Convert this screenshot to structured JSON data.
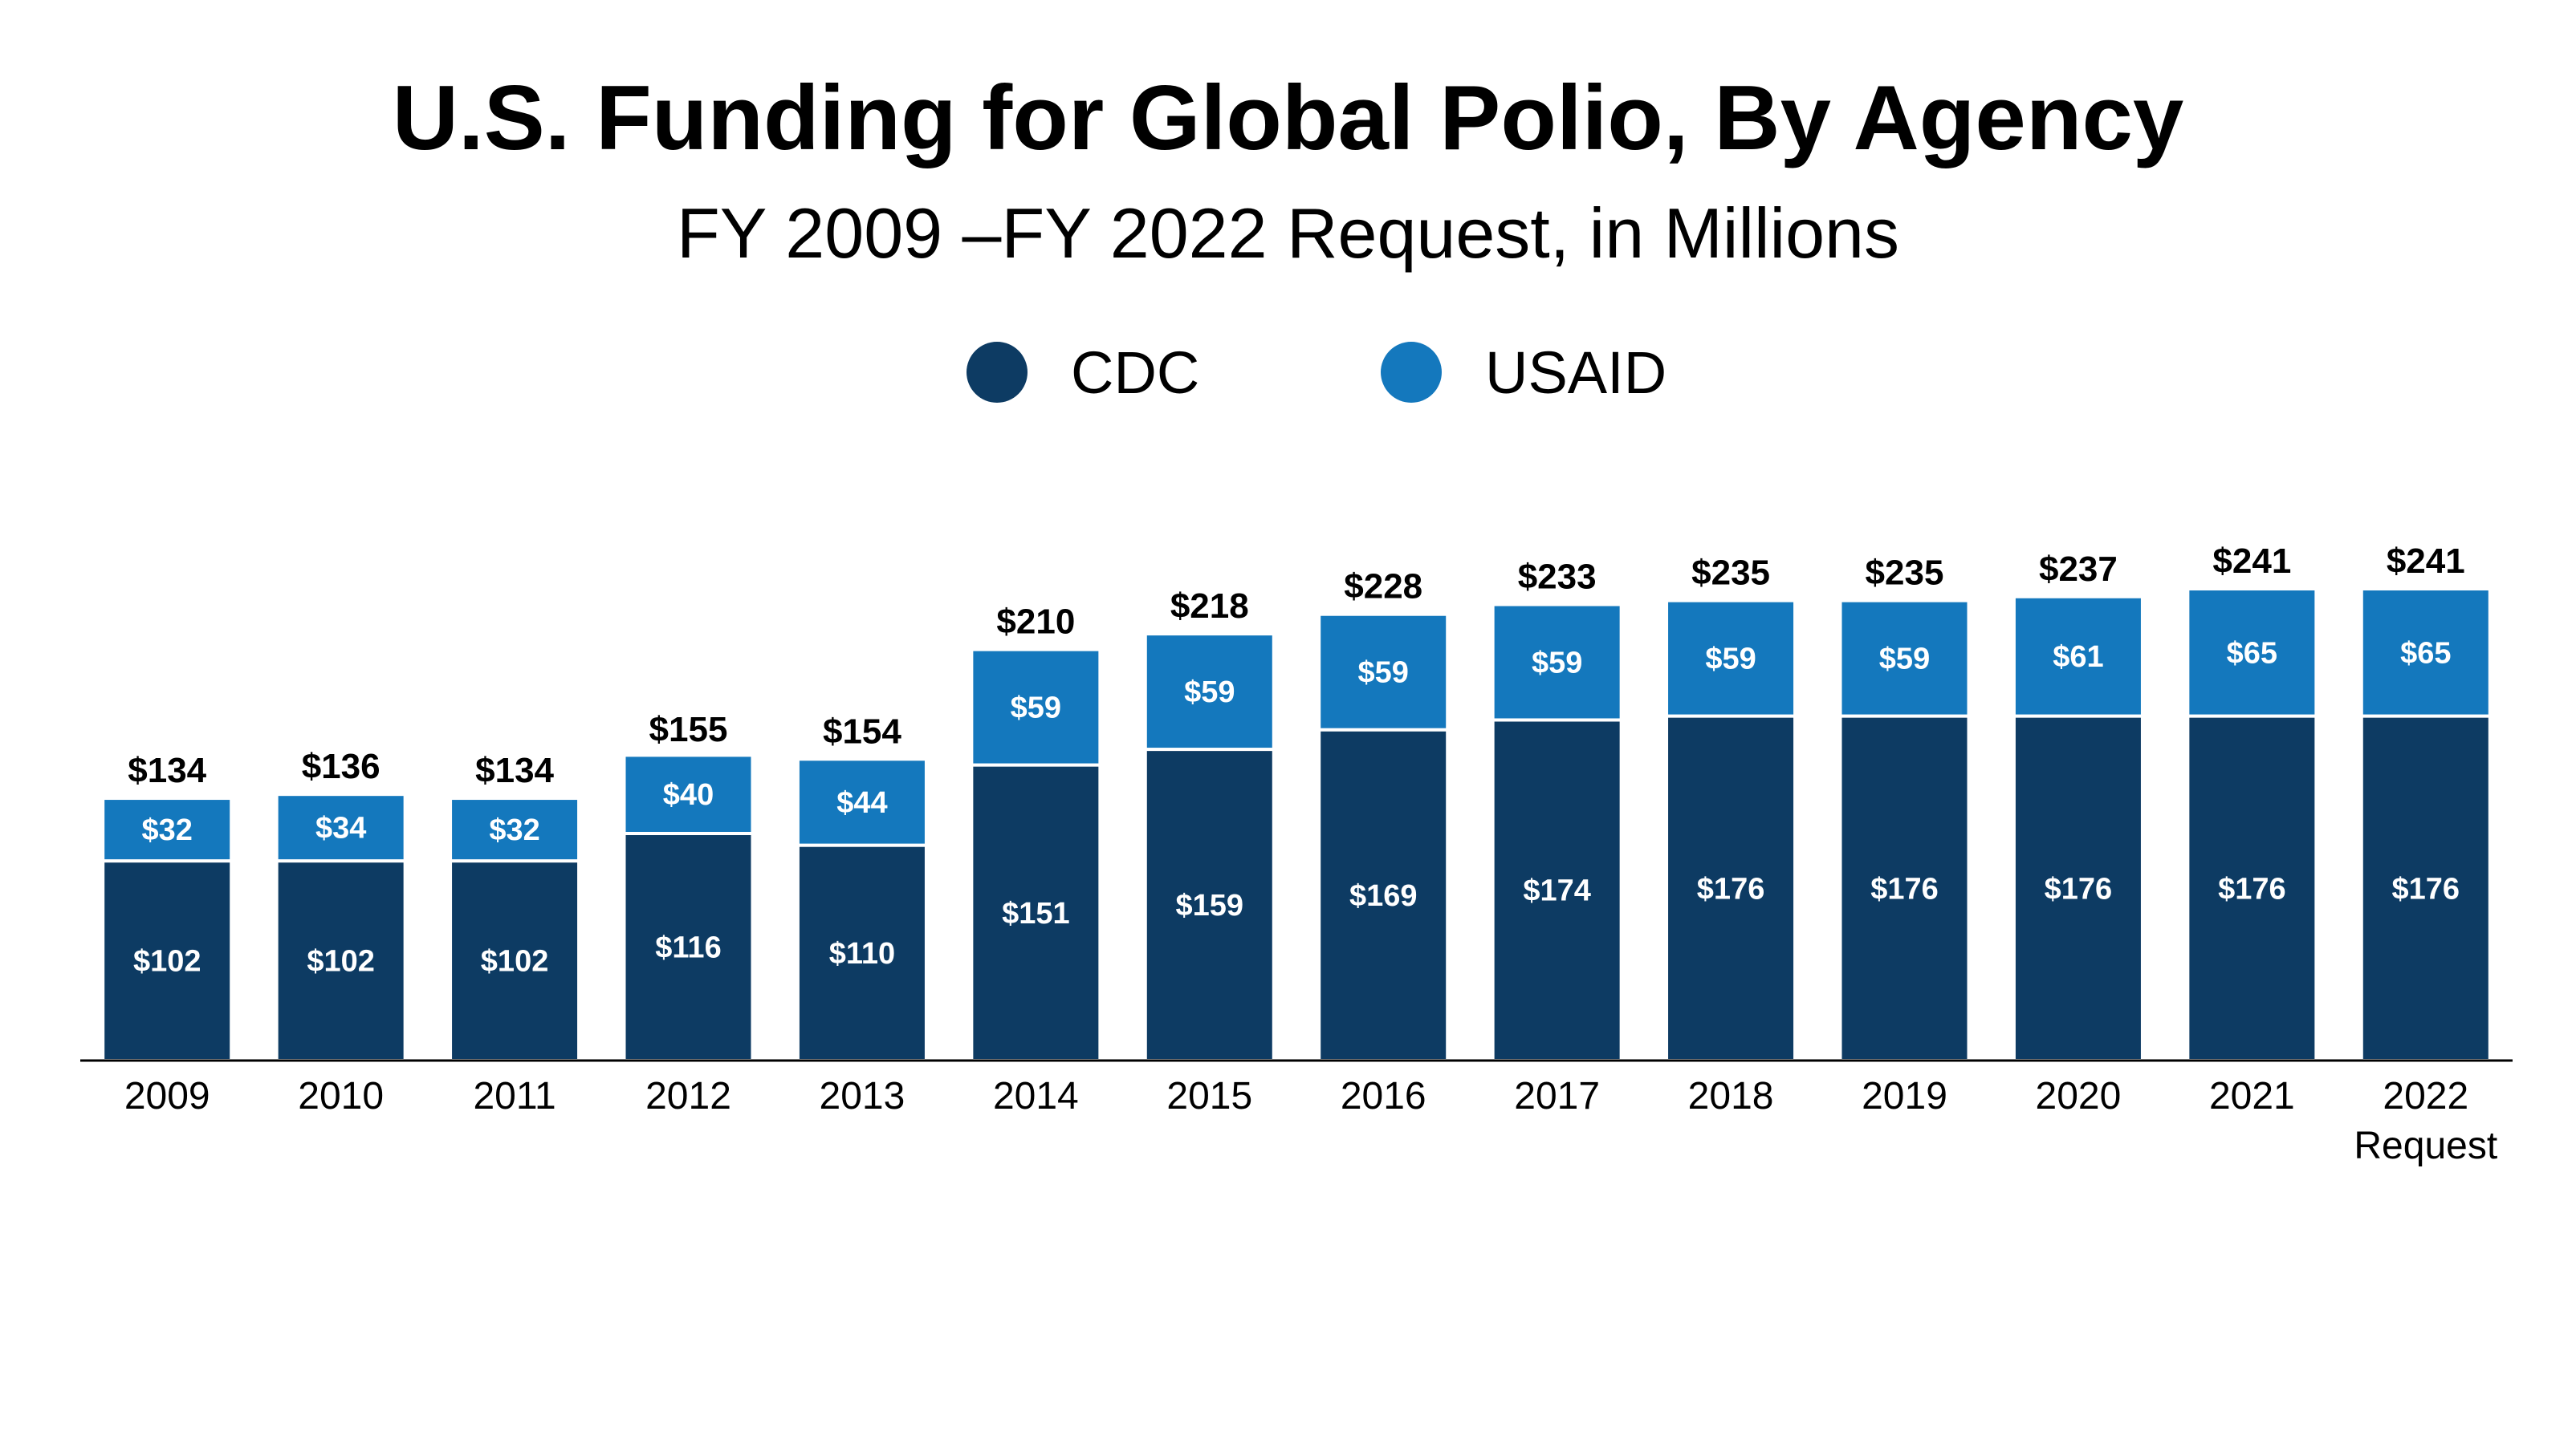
{
  "title": "U.S. Funding for Global Polio, By Agency",
  "subtitle": "FY 2009 –FY 2022 Request, in Millions",
  "legend": [
    {
      "label": "CDC",
      "color": "#0d3b63"
    },
    {
      "label": "USAID",
      "color": "#1478bd"
    }
  ],
  "chart_data": {
    "type": "bar",
    "stacked": true,
    "title": "U.S. Funding for Global Polio, By Agency",
    "subtitle": "FY 2009 –FY 2022 Request, in Millions",
    "categories": [
      "2009",
      "2010",
      "2011",
      "2012",
      "2013",
      "2014",
      "2015",
      "2016",
      "2017",
      "2018",
      "2019",
      "2020",
      "2021",
      "2022 Request"
    ],
    "series": [
      {
        "name": "CDC",
        "color": "#0d3b63",
        "values": [
          102,
          102,
          102,
          116,
          110,
          151,
          159,
          169,
          174,
          176,
          176,
          176,
          176,
          176
        ],
        "labels": [
          "$102",
          "$102",
          "$102",
          "$116",
          "$110",
          "$151",
          "$159",
          "$169",
          "$174",
          "$176",
          "$176",
          "$176",
          "$176",
          "$176"
        ]
      },
      {
        "name": "USAID",
        "color": "#1478bd",
        "values": [
          32,
          34,
          32,
          40,
          44,
          59,
          59,
          59,
          59,
          59,
          59,
          61,
          65,
          65
        ],
        "labels": [
          "$32",
          "$34",
          "$32",
          "$40",
          "$44",
          "$59",
          "$59",
          "$59",
          "$59",
          "$59",
          "$59",
          "$61",
          "$65",
          "$65"
        ]
      }
    ],
    "totals": [
      134,
      136,
      134,
      155,
      154,
      210,
      218,
      228,
      233,
      235,
      235,
      237,
      241,
      241
    ],
    "total_labels": [
      "$134",
      "$136",
      "$134",
      "$155",
      "$154",
      "$210",
      "$218",
      "$228",
      "$233",
      "$235",
      "$235",
      "$237",
      "$241",
      "$241"
    ],
    "ylim": [
      0,
      241
    ],
    "grid": false,
    "legend_position": "top-center"
  }
}
